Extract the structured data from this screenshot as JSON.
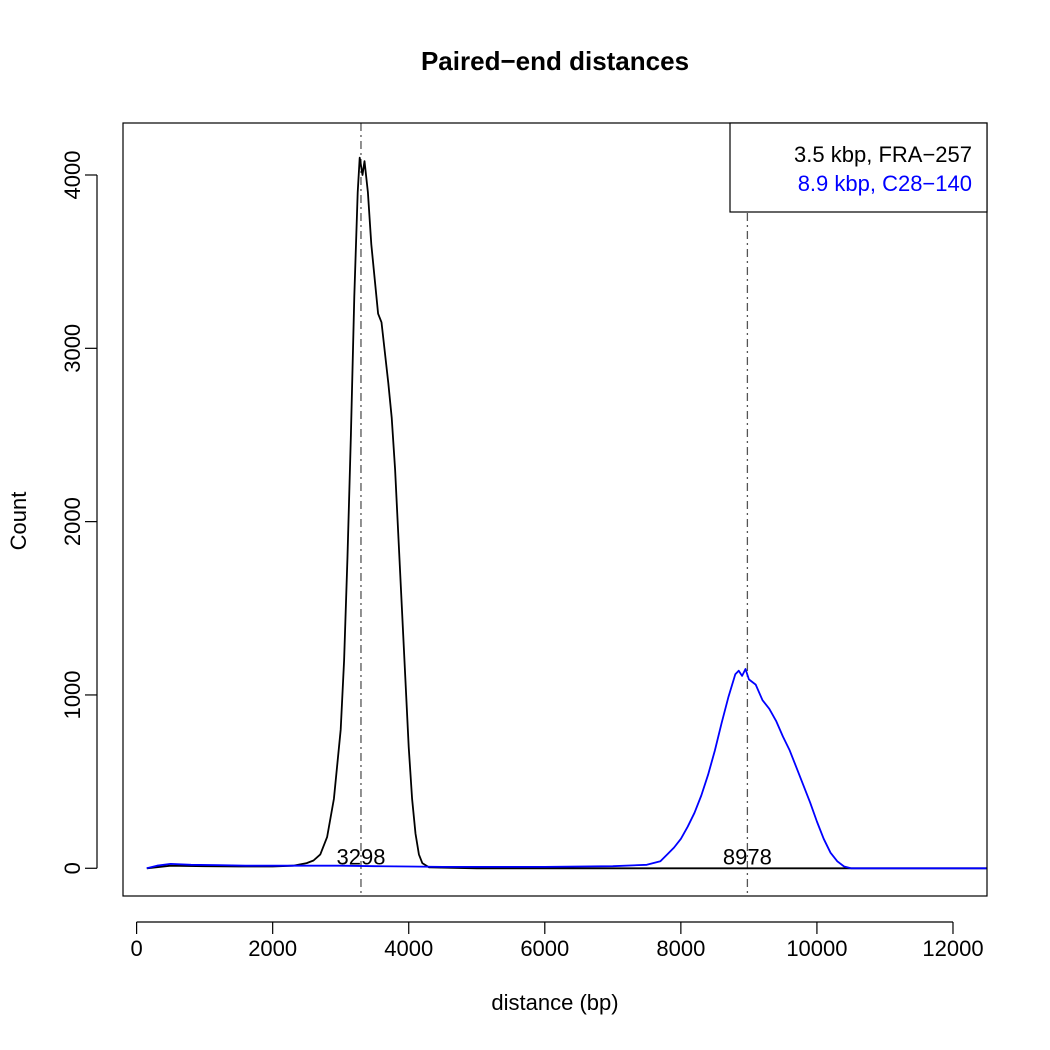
{
  "chart_data": {
    "type": "line",
    "title": "Paired−end distances",
    "xlabel": "distance (bp)",
    "ylabel": "Count",
    "xlim": [
      -200,
      12500
    ],
    "ylim": [
      -160,
      4300
    ],
    "x_ticks": [
      0,
      2000,
      4000,
      6000,
      8000,
      10000,
      12000
    ],
    "x_tick_labels": [
      "0",
      "2000",
      "4000",
      "6000",
      "8000",
      "10000",
      "12000"
    ],
    "y_ticks": [
      0,
      1000,
      2000,
      3000,
      4000
    ],
    "y_tick_labels": [
      "0",
      "1000",
      "2000",
      "3000",
      "4000"
    ],
    "grid": false,
    "legend_position": "top-right",
    "series": [
      {
        "name": "3.5 kbp, FRA−257",
        "color": "#000000",
        "points": [
          [
            150,
            0
          ],
          [
            500,
            15
          ],
          [
            1000,
            12
          ],
          [
            1500,
            10
          ],
          [
            2000,
            10
          ],
          [
            2300,
            15
          ],
          [
            2500,
            30
          ],
          [
            2600,
            45
          ],
          [
            2700,
            80
          ],
          [
            2800,
            180
          ],
          [
            2900,
            400
          ],
          [
            3000,
            800
          ],
          [
            3050,
            1200
          ],
          [
            3100,
            1800
          ],
          [
            3150,
            2500
          ],
          [
            3200,
            3300
          ],
          [
            3250,
            3900
          ],
          [
            3280,
            4100
          ],
          [
            3300,
            4050
          ],
          [
            3320,
            4000
          ],
          [
            3350,
            4080
          ],
          [
            3400,
            3900
          ],
          [
            3450,
            3600
          ],
          [
            3500,
            3400
          ],
          [
            3550,
            3200
          ],
          [
            3600,
            3150
          ],
          [
            3700,
            2800
          ],
          [
            3750,
            2600
          ],
          [
            3800,
            2300
          ],
          [
            3850,
            1900
          ],
          [
            3900,
            1500
          ],
          [
            3950,
            1100
          ],
          [
            4000,
            700
          ],
          [
            4050,
            400
          ],
          [
            4100,
            200
          ],
          [
            4150,
            80
          ],
          [
            4200,
            30
          ],
          [
            4300,
            5
          ],
          [
            5000,
            0
          ],
          [
            8000,
            0
          ],
          [
            12500,
            0
          ]
        ]
      },
      {
        "name": "8.9 kbp, C28−140",
        "color": "#0000ff",
        "points": [
          [
            150,
            0
          ],
          [
            300,
            15
          ],
          [
            500,
            25
          ],
          [
            800,
            20
          ],
          [
            1200,
            18
          ],
          [
            1600,
            15
          ],
          [
            2000,
            15
          ],
          [
            2500,
            15
          ],
          [
            3000,
            15
          ],
          [
            3500,
            12
          ],
          [
            4000,
            10
          ],
          [
            4500,
            8
          ],
          [
            5000,
            8
          ],
          [
            6000,
            8
          ],
          [
            7000,
            12
          ],
          [
            7500,
            20
          ],
          [
            7700,
            40
          ],
          [
            7800,
            80
          ],
          [
            7900,
            120
          ],
          [
            8000,
            170
          ],
          [
            8100,
            240
          ],
          [
            8200,
            320
          ],
          [
            8300,
            420
          ],
          [
            8400,
            540
          ],
          [
            8500,
            680
          ],
          [
            8600,
            840
          ],
          [
            8700,
            990
          ],
          [
            8800,
            1120
          ],
          [
            8850,
            1140
          ],
          [
            8900,
            1110
          ],
          [
            8950,
            1150
          ],
          [
            9000,
            1090
          ],
          [
            9100,
            1060
          ],
          [
            9200,
            970
          ],
          [
            9300,
            920
          ],
          [
            9400,
            850
          ],
          [
            9500,
            760
          ],
          [
            9600,
            680
          ],
          [
            9700,
            580
          ],
          [
            9800,
            480
          ],
          [
            9900,
            380
          ],
          [
            10000,
            270
          ],
          [
            10100,
            170
          ],
          [
            10200,
            90
          ],
          [
            10300,
            40
          ],
          [
            10400,
            10
          ],
          [
            10500,
            0
          ],
          [
            12500,
            0
          ]
        ]
      }
    ],
    "vlines": [
      3298,
      8978
    ],
    "annotations": [
      {
        "x": 3298,
        "y": 0,
        "text": "3298"
      },
      {
        "x": 8978,
        "y": 0,
        "text": "8978"
      }
    ]
  }
}
